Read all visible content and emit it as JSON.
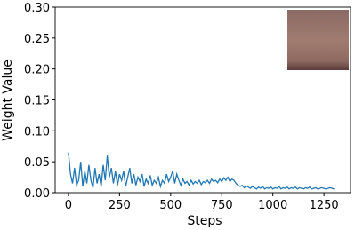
{
  "chart_data": {
    "type": "line",
    "xlabel": "Steps",
    "ylabel": "Weight Value",
    "x": [
      0,
      10,
      20,
      30,
      40,
      50,
      60,
      70,
      80,
      90,
      100,
      110,
      120,
      130,
      140,
      150,
      160,
      170,
      180,
      190,
      200,
      210,
      220,
      230,
      240,
      250,
      260,
      270,
      280,
      290,
      300,
      310,
      320,
      330,
      340,
      350,
      360,
      370,
      380,
      390,
      400,
      410,
      420,
      430,
      440,
      450,
      460,
      470,
      480,
      490,
      500,
      510,
      520,
      530,
      540,
      550,
      560,
      570,
      580,
      590,
      600,
      610,
      620,
      630,
      640,
      650,
      660,
      670,
      680,
      690,
      700,
      710,
      720,
      730,
      740,
      750,
      760,
      770,
      780,
      790,
      800,
      810,
      820,
      830,
      840,
      850,
      860,
      870,
      880,
      890,
      900,
      910,
      920,
      930,
      940,
      950,
      960,
      970,
      980,
      990,
      1000,
      1010,
      1020,
      1030,
      1040,
      1050,
      1060,
      1070,
      1080,
      1090,
      1100,
      1110,
      1120,
      1130,
      1140,
      1150,
      1160,
      1170,
      1180,
      1190,
      1200,
      1210,
      1220,
      1230,
      1240,
      1250,
      1260,
      1270,
      1280,
      1290,
      1300
    ],
    "series": [
      {
        "color": "#1f77b4",
        "values": [
          0.065,
          0.03,
          0.015,
          0.04,
          0.012,
          0.02,
          0.05,
          0.01,
          0.035,
          0.015,
          0.045,
          0.02,
          0.008,
          0.04,
          0.015,
          0.03,
          0.01,
          0.045,
          0.02,
          0.06,
          0.025,
          0.04,
          0.015,
          0.035,
          0.012,
          0.03,
          0.02,
          0.035,
          0.01,
          0.025,
          0.04,
          0.015,
          0.03,
          0.012,
          0.025,
          0.018,
          0.03,
          0.01,
          0.022,
          0.015,
          0.028,
          0.012,
          0.02,
          0.015,
          0.025,
          0.01,
          0.02,
          0.015,
          0.03,
          0.018,
          0.025,
          0.035,
          0.015,
          0.03,
          0.02,
          0.012,
          0.022,
          0.015,
          0.018,
          0.012,
          0.02,
          0.014,
          0.018,
          0.015,
          0.02,
          0.013,
          0.018,
          0.016,
          0.02,
          0.015,
          0.022,
          0.018,
          0.02,
          0.016,
          0.022,
          0.018,
          0.024,
          0.02,
          0.025,
          0.018,
          0.022,
          0.02,
          0.015,
          0.012,
          0.01,
          0.012,
          0.008,
          0.011,
          0.009,
          0.007,
          0.01,
          0.008,
          0.006,
          0.009,
          0.007,
          0.01,
          0.006,
          0.008,
          0.007,
          0.009,
          0.006,
          0.008,
          0.007,
          0.01,
          0.006,
          0.008,
          0.007,
          0.009,
          0.006,
          0.008,
          0.007,
          0.009,
          0.006,
          0.008,
          0.007,
          0.006,
          0.008,
          0.007,
          0.009,
          0.006,
          0.007,
          0.008,
          0.006,
          0.007,
          0.008,
          0.007,
          0.006,
          0.007,
          0.008,
          0.007,
          0.006
        ]
      }
    ],
    "xlim": [
      -65,
      1380
    ],
    "ylim": [
      0,
      0.3
    ],
    "xticks": [
      0,
      250,
      500,
      750,
      1000,
      1250
    ],
    "yticks": [
      {
        "value": 0,
        "label": "0.00"
      },
      {
        "value": 0.05,
        "label": "0.05"
      },
      {
        "value": 0.1,
        "label": "0.10"
      },
      {
        "value": 0.15,
        "label": "0.15"
      },
      {
        "value": 0.2,
        "label": "0.20"
      },
      {
        "value": 0.25,
        "label": "0.25"
      },
      {
        "value": 0.3,
        "label": "0.30"
      }
    ]
  }
}
